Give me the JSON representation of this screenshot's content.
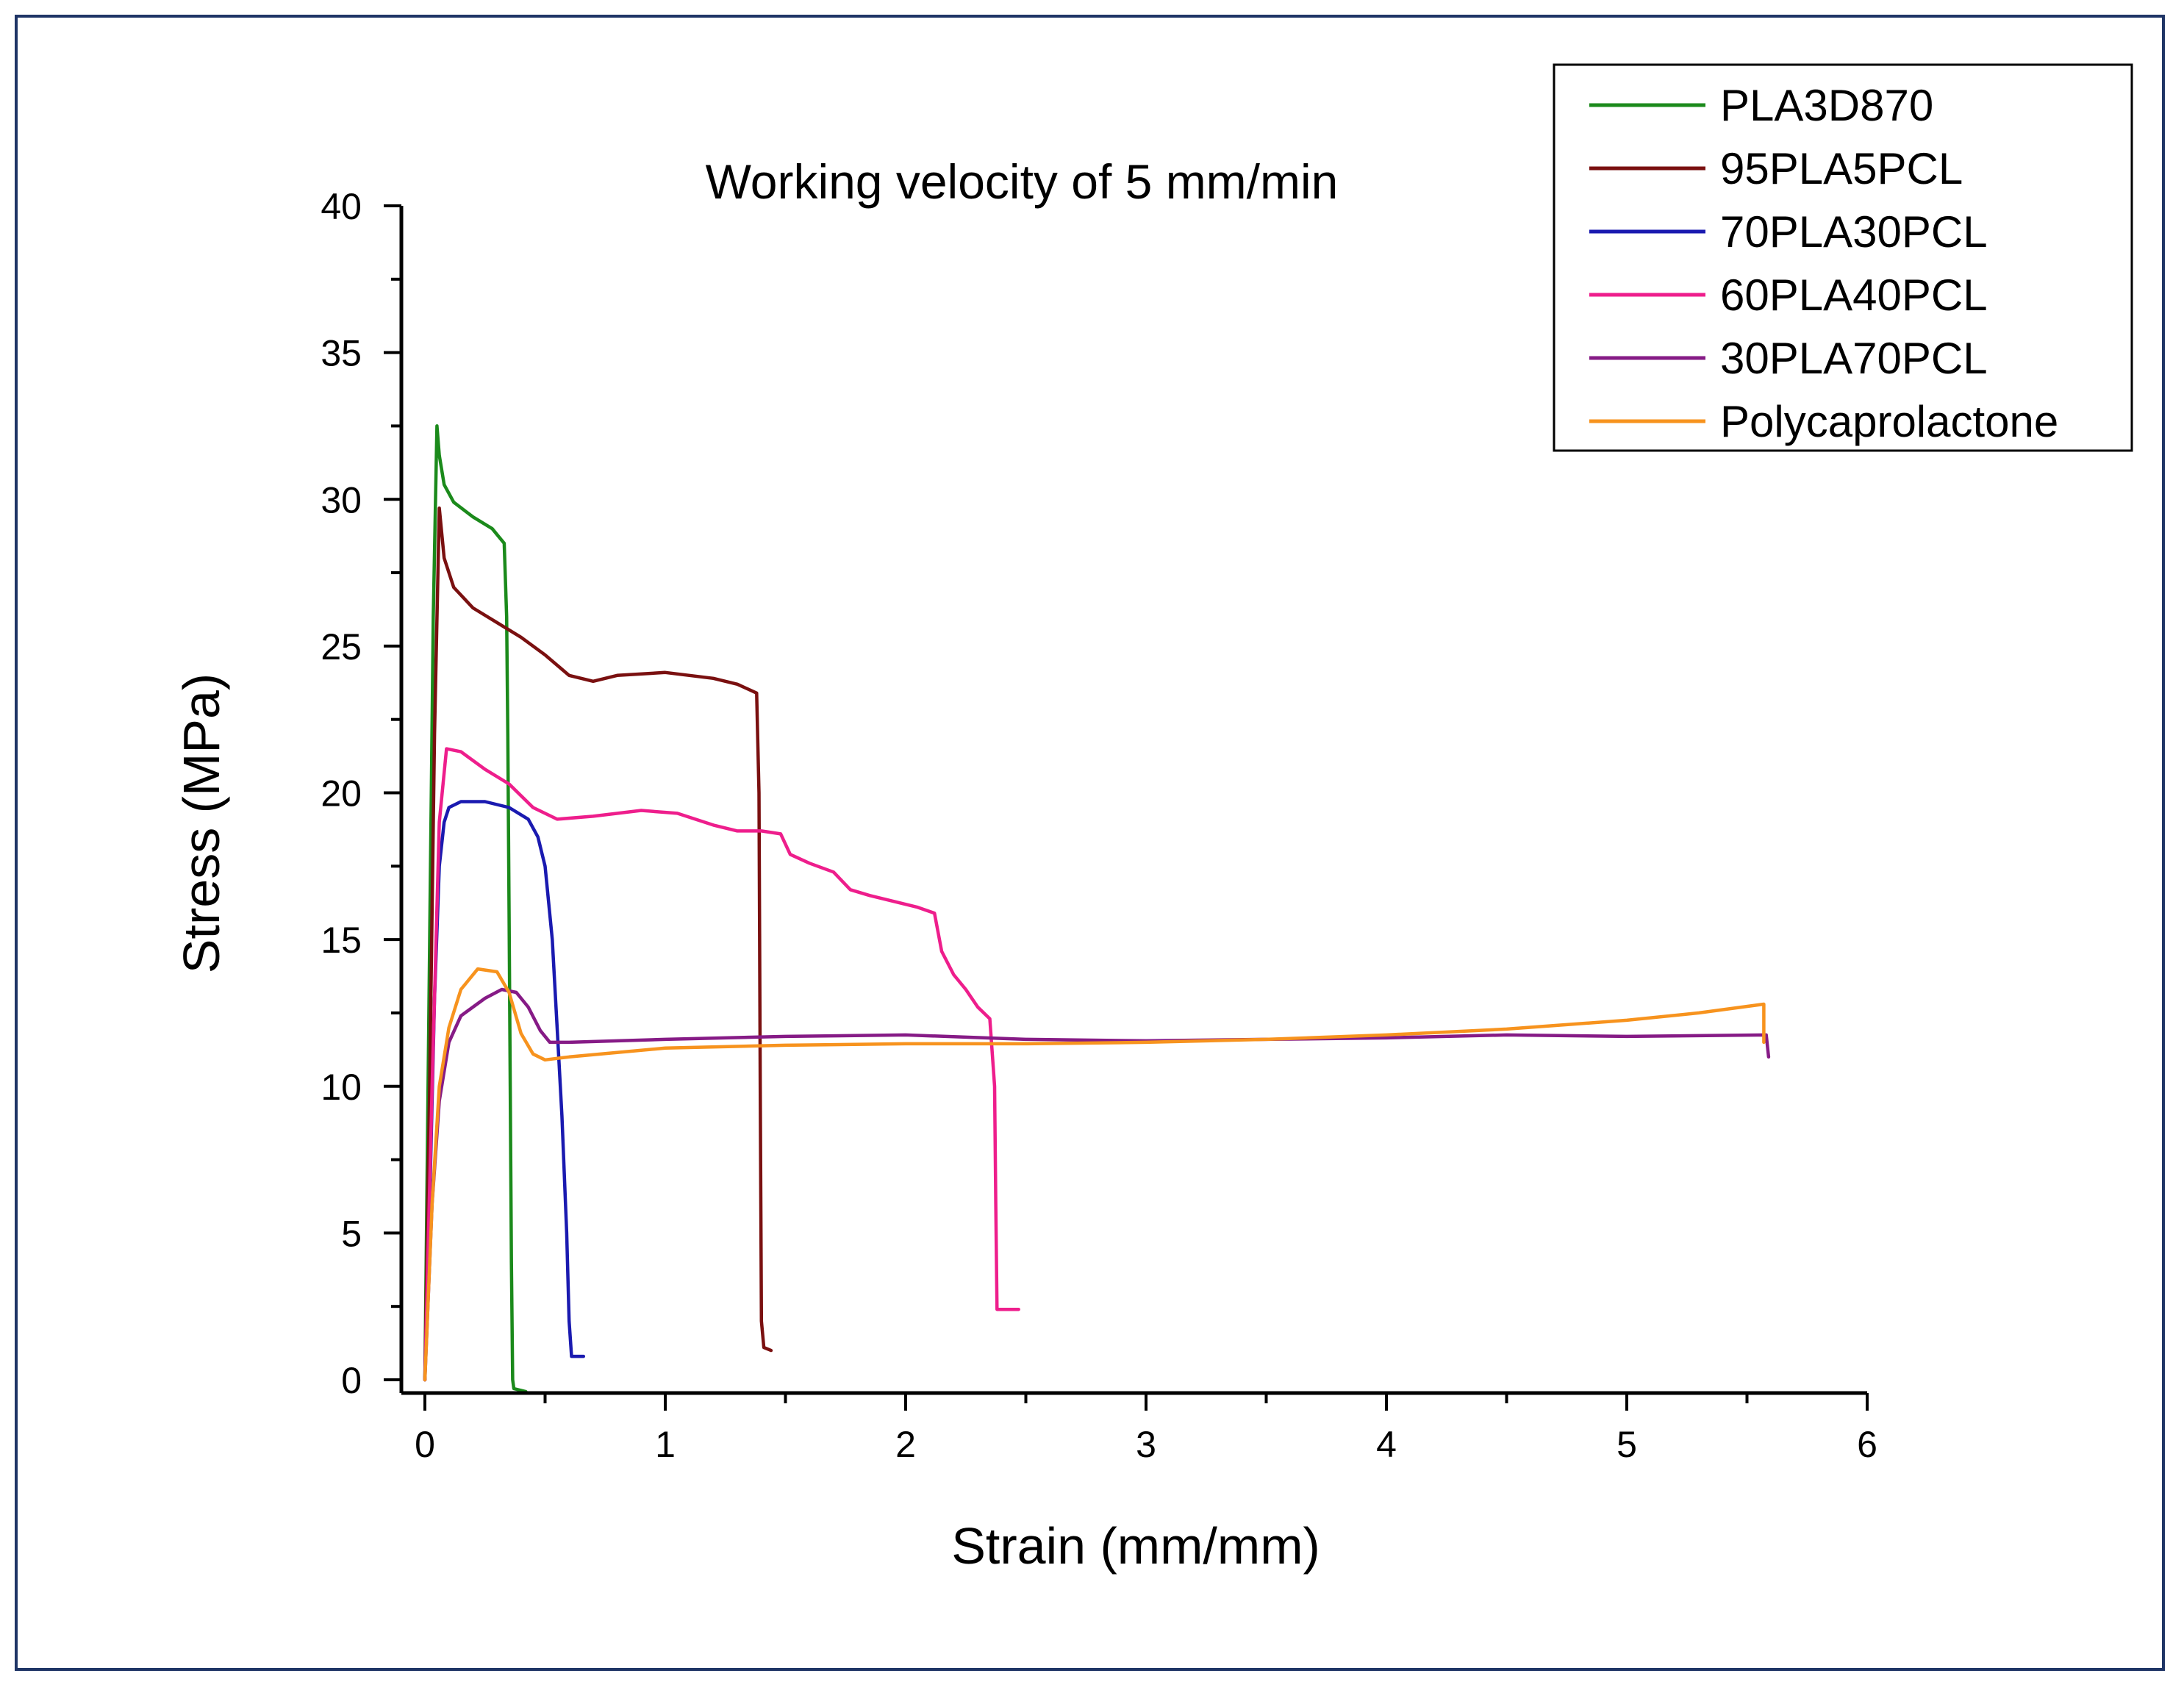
{
  "chart_data": {
    "type": "line",
    "title": "Working velocity of 5 mm/min",
    "xlabel": "Strain (mm/mm)",
    "ylabel": "Stress (MPa)",
    "xlim": [
      0,
      6
    ],
    "ylim": [
      0,
      40
    ],
    "xticks": [
      0,
      1,
      2,
      3,
      4,
      5,
      6
    ],
    "yticks": [
      0,
      5,
      10,
      15,
      20,
      25,
      30,
      35,
      40
    ],
    "grid": false,
    "legend_position": "top-right",
    "series": [
      {
        "name": "PLA3D870",
        "color": "#1b8a1b",
        "points": [
          [
            0,
            0
          ],
          [
            0.02,
            15
          ],
          [
            0.035,
            26
          ],
          [
            0.05,
            32.5
          ],
          [
            0.06,
            31.5
          ],
          [
            0.08,
            30.5
          ],
          [
            0.12,
            29.9
          ],
          [
            0.2,
            29.4
          ],
          [
            0.28,
            29.0
          ],
          [
            0.3,
            28.8
          ],
          [
            0.33,
            28.5
          ],
          [
            0.34,
            26
          ],
          [
            0.345,
            22
          ],
          [
            0.35,
            16
          ],
          [
            0.355,
            10
          ],
          [
            0.36,
            4
          ],
          [
            0.365,
            0
          ],
          [
            0.37,
            -0.3
          ],
          [
            0.42,
            -0.4
          ]
        ]
      },
      {
        "name": "95PLA5PCL",
        "color": "#7a1010",
        "points": [
          [
            0,
            0
          ],
          [
            0.02,
            10
          ],
          [
            0.04,
            22
          ],
          [
            0.06,
            29.7
          ],
          [
            0.08,
            28.0
          ],
          [
            0.12,
            27.0
          ],
          [
            0.2,
            26.3
          ],
          [
            0.3,
            25.8
          ],
          [
            0.4,
            25.3
          ],
          [
            0.5,
            24.7
          ],
          [
            0.6,
            24.0
          ],
          [
            0.7,
            23.8
          ],
          [
            0.8,
            24.0
          ],
          [
            1.0,
            24.1
          ],
          [
            1.2,
            23.9
          ],
          [
            1.3,
            23.7
          ],
          [
            1.38,
            23.4
          ],
          [
            1.39,
            20
          ],
          [
            1.395,
            10
          ],
          [
            1.4,
            2
          ],
          [
            1.41,
            1.1
          ],
          [
            1.44,
            1.0
          ]
        ]
      },
      {
        "name": "70PLA30PCL",
        "color": "#1a1ab0",
        "points": [
          [
            0,
            0
          ],
          [
            0.02,
            6
          ],
          [
            0.04,
            13
          ],
          [
            0.06,
            17.5
          ],
          [
            0.08,
            19.0
          ],
          [
            0.1,
            19.5
          ],
          [
            0.15,
            19.7
          ],
          [
            0.25,
            19.7
          ],
          [
            0.35,
            19.5
          ],
          [
            0.43,
            19.1
          ],
          [
            0.47,
            18.5
          ],
          [
            0.5,
            17.5
          ],
          [
            0.53,
            15
          ],
          [
            0.55,
            12
          ],
          [
            0.57,
            9
          ],
          [
            0.59,
            5
          ],
          [
            0.6,
            2
          ],
          [
            0.61,
            0.8
          ],
          [
            0.66,
            0.8
          ]
        ]
      },
      {
        "name": "60PLA40PCL",
        "color": "#ee1e8c",
        "points": [
          [
            0,
            0
          ],
          [
            0.03,
            10
          ],
          [
            0.06,
            19
          ],
          [
            0.09,
            21.5
          ],
          [
            0.15,
            21.4
          ],
          [
            0.25,
            20.8
          ],
          [
            0.35,
            20.3
          ],
          [
            0.45,
            19.5
          ],
          [
            0.55,
            19.1
          ],
          [
            0.7,
            19.2
          ],
          [
            0.9,
            19.4
          ],
          [
            1.05,
            19.3
          ],
          [
            1.2,
            18.9
          ],
          [
            1.3,
            18.7
          ],
          [
            1.4,
            18.7
          ],
          [
            1.48,
            18.6
          ],
          [
            1.52,
            17.9
          ],
          [
            1.6,
            17.6
          ],
          [
            1.7,
            17.3
          ],
          [
            1.77,
            16.7
          ],
          [
            1.85,
            16.5
          ],
          [
            1.95,
            16.3
          ],
          [
            2.05,
            16.1
          ],
          [
            2.12,
            15.9
          ],
          [
            2.15,
            14.6
          ],
          [
            2.2,
            13.8
          ],
          [
            2.25,
            13.3
          ],
          [
            2.3,
            12.7
          ],
          [
            2.35,
            12.3
          ],
          [
            2.37,
            10
          ],
          [
            2.375,
            6
          ],
          [
            2.38,
            2.4
          ],
          [
            2.47,
            2.4
          ]
        ]
      },
      {
        "name": "30PLA70PCL",
        "color": "#861b86",
        "points": [
          [
            0,
            0
          ],
          [
            0.03,
            6
          ],
          [
            0.06,
            9.5
          ],
          [
            0.1,
            11.5
          ],
          [
            0.15,
            12.4
          ],
          [
            0.25,
            13.0
          ],
          [
            0.32,
            13.3
          ],
          [
            0.38,
            13.2
          ],
          [
            0.43,
            12.7
          ],
          [
            0.48,
            11.9
          ],
          [
            0.52,
            11.5
          ],
          [
            0.6,
            11.5
          ],
          [
            1.0,
            11.6
          ],
          [
            1.5,
            11.7
          ],
          [
            2.0,
            11.75
          ],
          [
            2.5,
            11.6
          ],
          [
            3.0,
            11.55
          ],
          [
            3.5,
            11.6
          ],
          [
            4.0,
            11.65
          ],
          [
            4.5,
            11.75
          ],
          [
            5.0,
            11.7
          ],
          [
            5.58,
            11.75
          ],
          [
            5.59,
            11.0
          ]
        ]
      },
      {
        "name": "Polycaprolactone",
        "color": "#f7931e",
        "points": [
          [
            0,
            0
          ],
          [
            0.03,
            6
          ],
          [
            0.06,
            10
          ],
          [
            0.1,
            12.0
          ],
          [
            0.15,
            13.3
          ],
          [
            0.22,
            14.0
          ],
          [
            0.3,
            13.9
          ],
          [
            0.35,
            13.2
          ],
          [
            0.4,
            11.8
          ],
          [
            0.45,
            11.1
          ],
          [
            0.5,
            10.9
          ],
          [
            0.6,
            11.0
          ],
          [
            1.0,
            11.3
          ],
          [
            1.5,
            11.4
          ],
          [
            2.0,
            11.45
          ],
          [
            2.5,
            11.45
          ],
          [
            3.0,
            11.5
          ],
          [
            3.5,
            11.6
          ],
          [
            4.0,
            11.75
          ],
          [
            4.5,
            11.95
          ],
          [
            5.0,
            12.25
          ],
          [
            5.3,
            12.5
          ],
          [
            5.57,
            12.8
          ],
          [
            5.57,
            11.5
          ]
        ]
      }
    ]
  }
}
